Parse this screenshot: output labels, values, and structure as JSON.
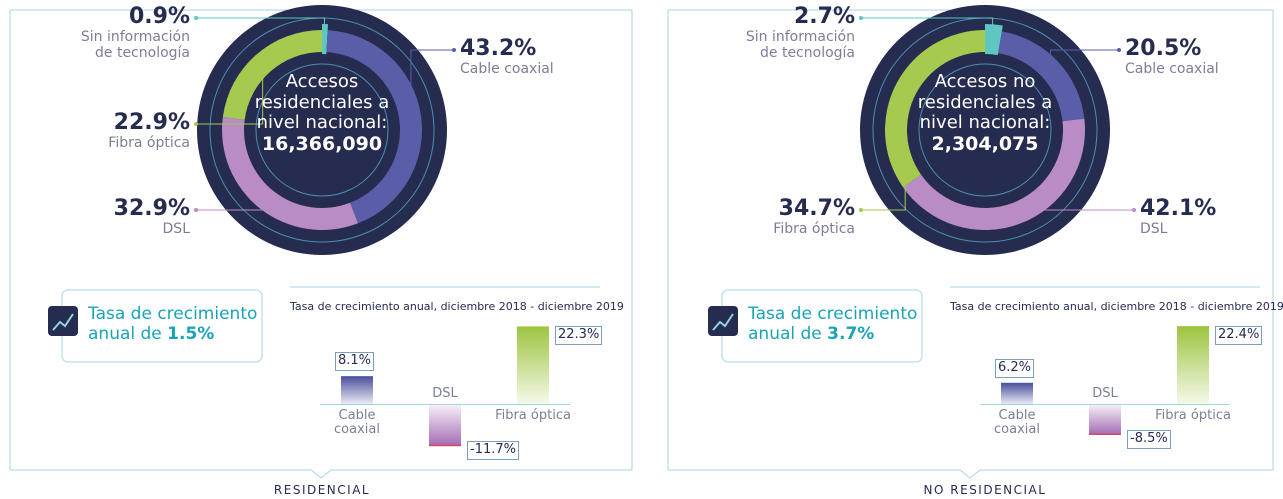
{
  "chart_data": [
    {
      "type": "pie",
      "center_text": "Accesos residenciales a nivel nacional:",
      "total": "16,366,090",
      "panel": "RESIDENCIAL",
      "growth_text": "Tasa de crecimiento anual de",
      "growth": "1.5%",
      "categories": [
        "Sin información de tecnología",
        "Cable coaxial",
        "DSL",
        "Fibra óptica"
      ],
      "values": [
        0.9,
        43.2,
        32.9,
        22.9
      ],
      "value_labels": [
        "0.9%",
        "43.2%",
        "32.9%",
        "22.9%"
      ],
      "colors": [
        "#5fc7c1",
        "#5a5da8",
        "#ba8cc6",
        "#a6c94f"
      ]
    },
    {
      "type": "bar",
      "title": "Tasa de crecimiento anual, diciembre 2018 - diciembre 2019",
      "categories": [
        "Cable coaxial",
        "DSL",
        "Fibra óptica"
      ],
      "values": [
        8.1,
        -11.7,
        22.3
      ],
      "value_labels": [
        "8.1%",
        "-11.7%",
        "22.3%"
      ],
      "colors": [
        "#4a4d9c",
        "#a56db4",
        "#9dc43e"
      ],
      "ylim": [
        -15,
        25
      ]
    },
    {
      "type": "pie",
      "center_text": "Accesos no residenciales a nivel nacional:",
      "total": "2,304,075",
      "panel": "NO RESIDENCIAL",
      "growth_text": "Tasa de crecimiento anual de",
      "growth": "3.7%",
      "categories": [
        "Sin información de tecnología",
        "Cable coaxial",
        "DSL",
        "Fibra óptica"
      ],
      "values": [
        2.7,
        20.5,
        42.1,
        34.7
      ],
      "value_labels": [
        "2.7%",
        "20.5%",
        "42.1%",
        "34.7%"
      ],
      "colors": [
        "#5fc7c1",
        "#5a5da8",
        "#ba8cc6",
        "#a6c94f"
      ]
    },
    {
      "type": "bar",
      "title": "Tasa de crecimiento anual, diciembre 2018 - diciembre 2019",
      "categories": [
        "Cable coaxial",
        "DSL",
        "Fibra óptica"
      ],
      "values": [
        6.2,
        -8.5,
        22.4
      ],
      "value_labels": [
        "6.2%",
        "-8.5%",
        "22.4%"
      ],
      "colors": [
        "#4a4d9c",
        "#a56db4",
        "#9dc43e"
      ],
      "ylim": [
        -15,
        25
      ]
    }
  ]
}
